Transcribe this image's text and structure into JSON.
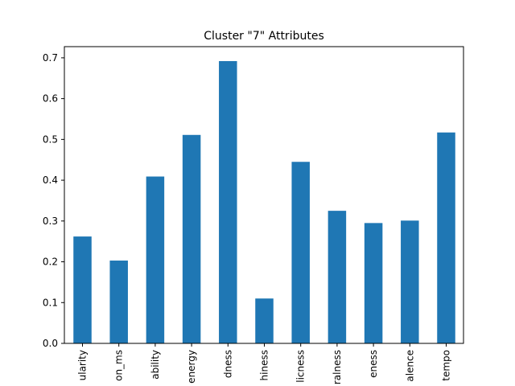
{
  "chart_data": {
    "type": "bar",
    "title": "Cluster \"7\" Attributes",
    "xlabel": "",
    "ylabel": "",
    "categories": [
      "ularity",
      "on_ms",
      "ability",
      "energy",
      "dness",
      "hiness",
      "licness",
      "ralness",
      "eness",
      "alence",
      "tempo"
    ],
    "values": [
      0.262,
      0.203,
      0.409,
      0.511,
      0.692,
      0.11,
      0.445,
      0.325,
      0.295,
      0.301,
      0.517
    ],
    "ylim": [
      0,
      0.7
    ],
    "yticks": [
      "0.0",
      "0.1",
      "0.2",
      "0.3",
      "0.4",
      "0.5",
      "0.6",
      "0.7"
    ],
    "bar_color": "#1f77b4",
    "grid": false,
    "legend": false
  }
}
